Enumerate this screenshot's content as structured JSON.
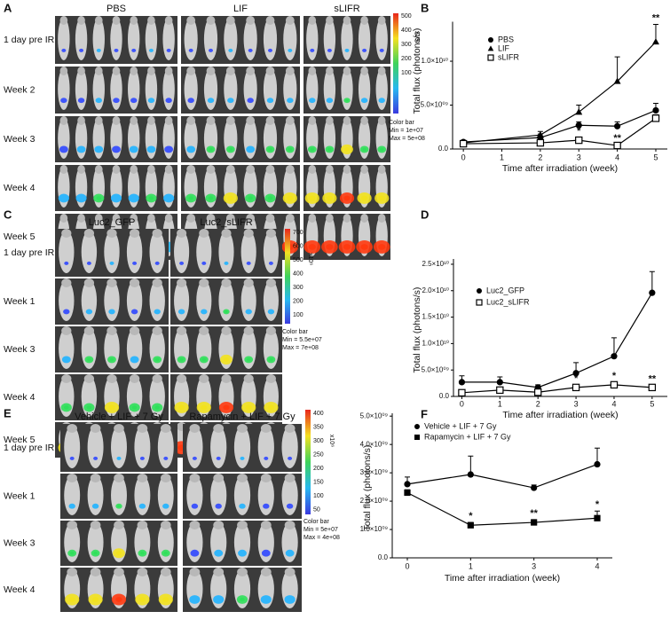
{
  "image_panels": [
    {
      "letter": "A",
      "columns": [
        "PBS",
        "LIF",
        "sLIFR"
      ],
      "rows": [
        "1 day pre IR",
        "Week 2",
        "Week 3",
        "Week 4",
        "Week 5"
      ],
      "colorbar": {
        "ticks": [
          500,
          400,
          300,
          200,
          100
        ],
        "unit": "x10⁶",
        "title": "Color bar",
        "min": "Min = 1e+07",
        "max": "Max = 5e+08"
      }
    },
    {
      "letter": "C",
      "columns": [
        "Luc2_GFP",
        "Luc2_sLIFR"
      ],
      "rows": [
        "1 day pre IR",
        "Week 1",
        "Week 3",
        "Week 4",
        "Week 5"
      ],
      "colorbar": {
        "ticks": [
          700,
          600,
          500,
          400,
          300,
          200,
          100
        ],
        "unit": "x10⁶",
        "title": "Color bar",
        "min": "Min = 5.5e+07",
        "max": "Max = 7e+08"
      }
    },
    {
      "letter": "E",
      "columns": [
        "Vehicle + LIF + 7 Gy",
        "Rapamycin + LIF + 7 Gy"
      ],
      "rows": [
        "1 day pre IR",
        "Week 1",
        "Week 3",
        "Week 4"
      ],
      "colorbar": {
        "ticks": [
          400,
          350,
          300,
          250,
          200,
          150,
          100,
          50
        ],
        "unit": "x10⁶",
        "title": "Color bar",
        "min": "Min = 5e+07",
        "max": "Max = 4e+08"
      }
    }
  ],
  "chart_data": [
    {
      "type": "line",
      "letter": "B",
      "x_label": "Time after irradiation (week)",
      "y_label": "Total flux (photons/s)",
      "x": [
        0,
        2,
        3,
        4,
        5
      ],
      "xlim": [
        -0.28,
        5.3
      ],
      "xticks": [
        0,
        1,
        2,
        3,
        4,
        5
      ],
      "ylim": [
        0,
        14500000000
      ],
      "yticks": [
        {
          "value": 0,
          "label": "0.0"
        },
        {
          "value": 5000000000,
          "label": "5.0×10⁰⁹"
        },
        {
          "value": 10000000000,
          "label": "1.0×10¹⁰"
        }
      ],
      "series": [
        {
          "name": "PBS",
          "color": "#000000",
          "marker": "circle",
          "values": [
            800000000,
            1300000000,
            2700000000,
            2600000000,
            4400000000
          ],
          "errors": [
            100000000,
            400000000,
            400000000,
            500000000,
            800000000
          ]
        },
        {
          "name": "LIF",
          "color": "#000000",
          "marker": "triangle",
          "values": [
            700000000,
            1600000000,
            4200000000,
            7700000000,
            12200000000
          ],
          "errors": [
            100000000,
            400000000,
            800000000,
            2800000000,
            2000000000
          ],
          "significance": [
            null,
            null,
            null,
            null,
            "**"
          ]
        },
        {
          "name": "sLIFR",
          "color": "#000000",
          "marker": "square-open",
          "values": [
            600000000,
            700000000,
            1000000000,
            400000000,
            3500000000
          ],
          "errors": [
            100000000,
            200000000,
            300000000,
            100000000,
            400000000
          ],
          "significance": [
            null,
            null,
            "*",
            "**",
            null
          ]
        }
      ]
    },
    {
      "type": "line",
      "letter": "D",
      "x_label": "Time after irradiation (week)",
      "y_label": "Total flux (photons/s)",
      "x": [
        0,
        1,
        2,
        3,
        4,
        5
      ],
      "xlim": [
        -0.22,
        5.4
      ],
      "xticks": [
        0,
        1,
        2,
        3,
        4,
        5
      ],
      "ylim": [
        0,
        26000000000
      ],
      "yticks": [
        {
          "value": 0,
          "label": "0.0"
        },
        {
          "value": 5000000000,
          "label": "5.0×10⁰⁹"
        },
        {
          "value": 10000000000,
          "label": "1.0×10¹⁰"
        },
        {
          "value": 15000000000,
          "label": "1.5×10¹⁰"
        },
        {
          "value": 20000000000,
          "label": "2.0×10¹⁰"
        },
        {
          "value": 25000000000,
          "label": "2.5×10¹⁰"
        }
      ],
      "series": [
        {
          "name": "Luc2_GFP",
          "color": "#000000",
          "marker": "circle",
          "values": [
            2700000000,
            2700000000,
            1700000000,
            4400000000,
            7600000000,
            19600000000
          ],
          "errors": [
            1200000000,
            1000000000,
            500000000,
            2000000000,
            3500000000,
            4000000000
          ]
        },
        {
          "name": "Luc2_sLIFR",
          "color": "#000000",
          "marker": "square-open",
          "values": [
            700000000,
            1200000000,
            800000000,
            1700000000,
            2200000000,
            1700000000
          ],
          "errors": [
            300000000,
            300000000,
            300000000,
            500000000,
            500000000,
            400000000
          ],
          "significance": [
            null,
            null,
            null,
            "*",
            "*",
            "**"
          ]
        }
      ]
    },
    {
      "type": "line",
      "letter": "F",
      "x_label": "Time after irradiation (week)",
      "y_label": "Total flux (photons/s)",
      "categories": [
        "0",
        "1",
        "3",
        "4"
      ],
      "ylim": [
        0,
        5100000000
      ],
      "yticks": [
        {
          "value": 0,
          "label": "0.0"
        },
        {
          "value": 1000000000,
          "label": "1.0×10⁰⁹"
        },
        {
          "value": 2000000000,
          "label": "2.0×10⁰⁹"
        },
        {
          "value": 3000000000,
          "label": "3.0×10⁰⁹"
        },
        {
          "value": 4000000000,
          "label": "4.0×10⁰⁹"
        },
        {
          "value": 5000000000,
          "label": "5.0×10⁰⁹"
        }
      ],
      "series": [
        {
          "name": "Vehicle + LIF + 7 Gy",
          "color": "#000000",
          "marker": "circle",
          "values": [
            2600000000,
            2940000000,
            2470000000,
            3300000000
          ],
          "errors": [
            250000000,
            650000000,
            100000000,
            570000000
          ]
        },
        {
          "name": "Rapamycin + LIF + 7 Gy",
          "color": "#000000",
          "marker": "square",
          "values": [
            2300000000,
            1150000000,
            1250000000,
            1400000000
          ],
          "errors": [
            100000000,
            100000000,
            100000000,
            250000000
          ],
          "significance": [
            null,
            "*",
            "**",
            "*"
          ]
        }
      ]
    }
  ]
}
